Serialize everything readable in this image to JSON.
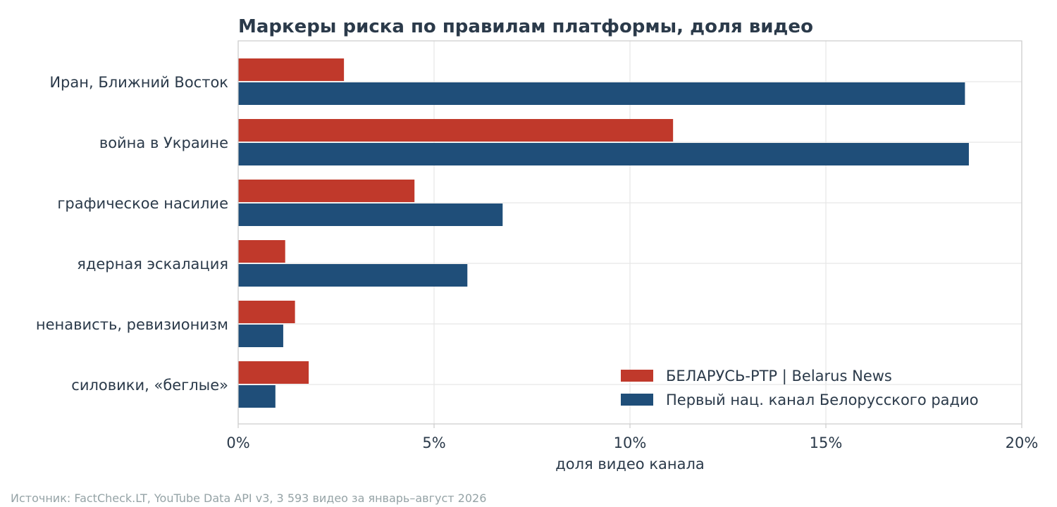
{
  "chart_data": {
    "type": "bar",
    "orientation": "horizontal",
    "title": "Маркеры риска по правилам платформы, доля видео",
    "xlabel": "доля видео канала",
    "ylabel": "",
    "xlim": [
      0,
      20
    ],
    "x_ticks": [
      0,
      5,
      10,
      15,
      20
    ],
    "x_tick_labels": [
      "0%",
      "5%",
      "10%",
      "15%",
      "20%"
    ],
    "categories": [
      "Иран, Ближний Восток",
      "война в Украине",
      "графическое насилие",
      "ядерная эскалация",
      "ненависть, ревизионизм",
      "силовики, «беглые»"
    ],
    "series": [
      {
        "name": "БЕЛАРУСЬ-РТР | Belarus News",
        "color": "#c0392b",
        "values": [
          2.7,
          11.1,
          4.5,
          1.2,
          1.45,
          1.8
        ]
      },
      {
        "name": "Первый нац. канал Белорусского радио",
        "color": "#1f4e79",
        "values": [
          18.55,
          18.65,
          6.75,
          5.85,
          1.15,
          0.95
        ]
      }
    ],
    "grid": true,
    "legend_position": "lower-right"
  },
  "footer": {
    "source": "Источник: FactCheck.LT, YouTube Data API v3, 3 593 видео за январь–август 2026"
  }
}
